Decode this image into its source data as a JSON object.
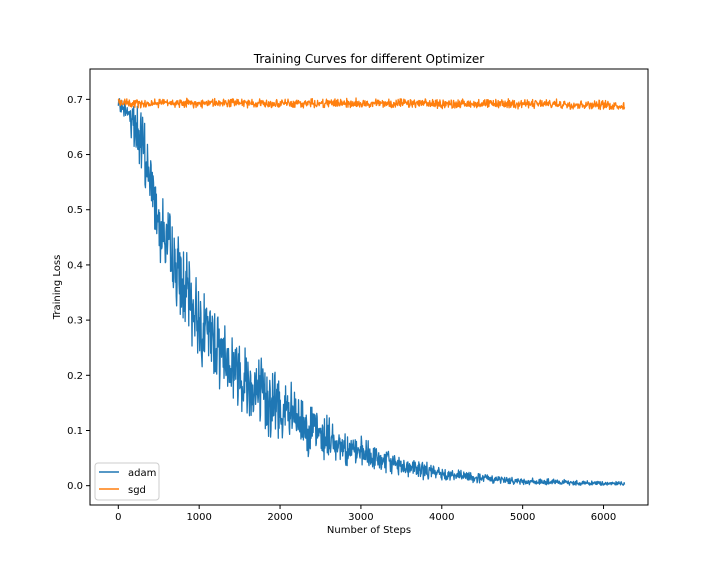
{
  "chart_data": {
    "type": "line",
    "title": "Training Curves for different Optimizer",
    "xlabel": "Number of Steps",
    "ylabel": "Training Loss",
    "xlim": [
      -350,
      6550
    ],
    "ylim": [
      -0.035,
      0.755
    ],
    "xticks": [
      0,
      1000,
      2000,
      3000,
      4000,
      5000,
      6000
    ],
    "yticks": [
      0.0,
      0.1,
      0.2,
      0.3,
      0.4,
      0.5,
      0.6,
      0.7
    ],
    "xtick_labels": [
      "0",
      "1000",
      "2000",
      "3000",
      "4000",
      "5000",
      "6000"
    ],
    "ytick_labels": [
      "0.0",
      "0.1",
      "0.2",
      "0.3",
      "0.4",
      "0.5",
      "0.6",
      "0.7"
    ],
    "grid": false,
    "legend_position": "lower-left",
    "series": [
      {
        "name": "adam",
        "color": "#1f77b4",
        "x": [
          0,
          100,
          200,
          300,
          400,
          500,
          600,
          700,
          800,
          900,
          1000,
          1200,
          1400,
          1600,
          1800,
          2000,
          2200,
          2400,
          2600,
          2800,
          3000,
          3200,
          3400,
          3600,
          3800,
          4000,
          4200,
          4400,
          4600,
          4800,
          5000,
          5200,
          5400,
          5600,
          5800,
          6000,
          6260
        ],
        "y": [
          0.69,
          0.68,
          0.66,
          0.61,
          0.55,
          0.49,
          0.44,
          0.4,
          0.36,
          0.33,
          0.3,
          0.26,
          0.22,
          0.19,
          0.16,
          0.14,
          0.12,
          0.1,
          0.085,
          0.07,
          0.058,
          0.048,
          0.04,
          0.033,
          0.027,
          0.022,
          0.018,
          0.015,
          0.012,
          0.01,
          0.008,
          0.007,
          0.006,
          0.005,
          0.005,
          0.004,
          0.004
        ]
      },
      {
        "name": "sgd",
        "color": "#ff7f0e",
        "x": [
          0,
          100,
          500,
          1000,
          2000,
          3000,
          4000,
          5000,
          6000,
          6260
        ],
        "y": [
          0.695,
          0.693,
          0.693,
          0.693,
          0.693,
          0.693,
          0.692,
          0.692,
          0.69,
          0.688
        ]
      }
    ]
  }
}
